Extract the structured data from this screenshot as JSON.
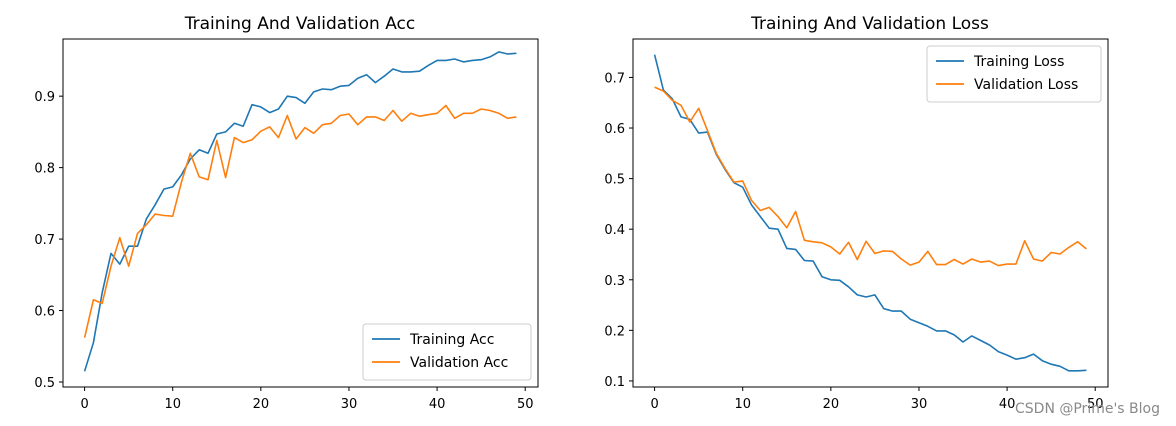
{
  "colors": {
    "training": "#1f77b4",
    "validation": "#ff7f0e",
    "watermark": "#8a8a8a"
  },
  "watermark": "CSDN @Prime's Blog",
  "chart_data": [
    {
      "type": "line",
      "title": "Training And Validation Acc",
      "xlabel": "",
      "ylabel": "",
      "xlim": [
        -2.45,
        51.45
      ],
      "ylim": [
        0.493,
        0.98
      ],
      "xticks": [
        0,
        10,
        20,
        30,
        40,
        50
      ],
      "yticks": [
        0.5,
        0.6,
        0.7,
        0.8,
        0.9
      ],
      "legend": "lower-right",
      "x": [
        0,
        1,
        2,
        3,
        4,
        5,
        6,
        7,
        8,
        9,
        10,
        11,
        12,
        13,
        14,
        15,
        16,
        17,
        18,
        19,
        20,
        21,
        22,
        23,
        24,
        25,
        26,
        27,
        28,
        29,
        30,
        31,
        32,
        33,
        34,
        35,
        36,
        37,
        38,
        39,
        40,
        41,
        42,
        43,
        44,
        45,
        46,
        47,
        48,
        49
      ],
      "series": [
        {
          "name": "Training Acc",
          "color_key": "training",
          "values": [
            0.515,
            0.555,
            0.625,
            0.68,
            0.665,
            0.69,
            0.69,
            0.728,
            0.748,
            0.77,
            0.773,
            0.79,
            0.812,
            0.825,
            0.82,
            0.847,
            0.85,
            0.862,
            0.858,
            0.888,
            0.885,
            0.877,
            0.882,
            0.9,
            0.898,
            0.89,
            0.906,
            0.91,
            0.909,
            0.914,
            0.915,
            0.925,
            0.93,
            0.919,
            0.928,
            0.938,
            0.934,
            0.934,
            0.935,
            0.943,
            0.95,
            0.95,
            0.952,
            0.948,
            0.95,
            0.951,
            0.955,
            0.962,
            0.959,
            0.96
          ]
        },
        {
          "name": "Validation Acc",
          "color_key": "validation",
          "values": [
            0.562,
            0.615,
            0.61,
            0.662,
            0.702,
            0.662,
            0.708,
            0.72,
            0.735,
            0.733,
            0.732,
            0.78,
            0.82,
            0.787,
            0.783,
            0.838,
            0.786,
            0.842,
            0.835,
            0.839,
            0.851,
            0.857,
            0.842,
            0.873,
            0.84,
            0.856,
            0.848,
            0.86,
            0.862,
            0.873,
            0.875,
            0.86,
            0.871,
            0.871,
            0.866,
            0.88,
            0.865,
            0.876,
            0.872,
            0.874,
            0.876,
            0.887,
            0.869,
            0.876,
            0.876,
            0.882,
            0.88,
            0.876,
            0.869,
            0.871
          ]
        }
      ]
    },
    {
      "type": "line",
      "title": "Training And Validation Loss",
      "xlabel": "",
      "ylabel": "",
      "xlim": [
        -2.45,
        51.45
      ],
      "ylim": [
        0.088,
        0.776
      ],
      "xticks": [
        0,
        10,
        20,
        30,
        40,
        50
      ],
      "yticks": [
        0.1,
        0.2,
        0.3,
        0.4,
        0.5,
        0.6,
        0.7
      ],
      "legend": "top-right",
      "x": [
        0,
        1,
        2,
        3,
        4,
        5,
        6,
        7,
        8,
        9,
        10,
        11,
        12,
        13,
        14,
        15,
        16,
        17,
        18,
        19,
        20,
        21,
        22,
        23,
        24,
        25,
        26,
        27,
        28,
        29,
        30,
        31,
        32,
        33,
        34,
        35,
        36,
        37,
        38,
        39,
        40,
        41,
        42,
        43,
        44,
        45,
        46,
        47,
        48,
        49
      ],
      "series": [
        {
          "name": "Training Loss",
          "color_key": "training",
          "values": [
            0.745,
            0.675,
            0.658,
            0.622,
            0.617,
            0.59,
            0.592,
            0.548,
            0.518,
            0.492,
            0.483,
            0.448,
            0.425,
            0.402,
            0.4,
            0.362,
            0.36,
            0.338,
            0.337,
            0.306,
            0.3,
            0.299,
            0.286,
            0.27,
            0.266,
            0.27,
            0.243,
            0.238,
            0.238,
            0.222,
            0.215,
            0.208,
            0.199,
            0.199,
            0.191,
            0.177,
            0.189,
            0.18,
            0.171,
            0.158,
            0.151,
            0.143,
            0.146,
            0.153,
            0.14,
            0.133,
            0.129,
            0.12,
            0.12,
            0.121
          ]
        },
        {
          "name": "Validation Loss",
          "color_key": "validation",
          "values": [
            0.681,
            0.673,
            0.655,
            0.645,
            0.612,
            0.639,
            0.595,
            0.55,
            0.52,
            0.493,
            0.495,
            0.457,
            0.437,
            0.443,
            0.425,
            0.403,
            0.435,
            0.378,
            0.375,
            0.373,
            0.365,
            0.351,
            0.374,
            0.34,
            0.376,
            0.352,
            0.357,
            0.356,
            0.341,
            0.329,
            0.335,
            0.356,
            0.33,
            0.33,
            0.34,
            0.331,
            0.341,
            0.335,
            0.337,
            0.328,
            0.331,
            0.331,
            0.377,
            0.341,
            0.337,
            0.354,
            0.351,
            0.364,
            0.375,
            0.361
          ]
        }
      ]
    }
  ]
}
